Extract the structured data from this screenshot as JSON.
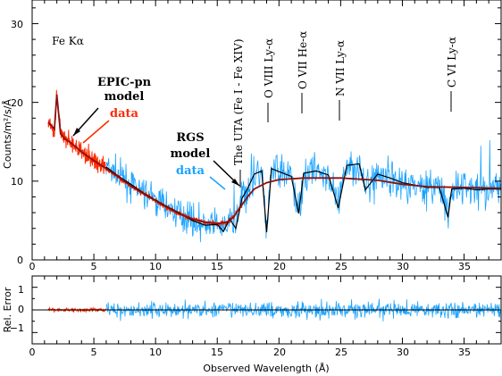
{
  "chart_data": [
    {
      "type": "line",
      "xlabel": "",
      "ylabel": "Counts/m²/s/Å",
      "xlim": [
        0,
        38
      ],
      "ylim": [
        0,
        33
      ],
      "xticks": [
        0,
        5,
        10,
        15,
        20,
        25,
        30,
        35
      ],
      "yticks": [
        0,
        10,
        20,
        30
      ],
      "grid": false,
      "colors": {
        "epic_data": "#ff2a00",
        "rgs_data": "#1aa3ff",
        "model": "#000000",
        "smooth_model": "#8b1010"
      },
      "series": [
        {
          "name": "EPIC-pn model",
          "x": [
            1.3,
            1.6,
            1.8,
            2.0,
            2.3,
            2.7,
            3.2,
            4.0,
            5.0,
            6.0,
            7.0,
            8.0,
            9.0,
            10.0,
            11.0,
            12.0,
            13.0,
            14.0,
            15.0,
            15.8,
            16.3,
            17.0,
            17.5,
            18.0,
            19.0,
            20.0,
            22.0,
            25.0,
            28.0,
            30.0,
            32.0,
            35.0,
            38.0
          ],
          "y": [
            17.5,
            17.0,
            16.6,
            21.0,
            16.0,
            15.3,
            14.8,
            13.7,
            12.6,
            11.6,
            10.5,
            9.4,
            8.4,
            7.5,
            6.6,
            5.8,
            5.2,
            4.8,
            4.6,
            4.8,
            5.4,
            7.0,
            8.1,
            9.0,
            9.8,
            10.2,
            10.4,
            10.4,
            10.1,
            9.6,
            9.3,
            9.2,
            9.1
          ]
        },
        {
          "name": "RGS model",
          "x": [
            6.0,
            7.0,
            8.0,
            9.0,
            10.0,
            11.0,
            12.0,
            13.0,
            14.0,
            15.0,
            15.5,
            16.0,
            16.5,
            17.0,
            17.5,
            18.0,
            18.6,
            19.0,
            19.4,
            20.0,
            21.0,
            21.6,
            22.0,
            23.0,
            24.0,
            24.8,
            25.5,
            26.5,
            27.0,
            28.0,
            29.0,
            30.0,
            31.0,
            32.0,
            33.0,
            33.7,
            34.0,
            35.0,
            36.0,
            37.0,
            38.0
          ],
          "y": [
            11.8,
            10.6,
            9.6,
            8.5,
            7.6,
            6.7,
            5.9,
            5.0,
            4.4,
            4.5,
            3.6,
            5.2,
            4.0,
            7.8,
            9.2,
            10.9,
            11.3,
            3.5,
            11.6,
            11.2,
            10.6,
            5.9,
            11.0,
            11.3,
            10.8,
            6.6,
            12.0,
            12.2,
            8.9,
            10.9,
            10.4,
            9.8,
            9.5,
            9.2,
            9.2,
            5.4,
            9.0,
            9.1,
            8.9,
            9.0,
            9.0
          ]
        }
      ],
      "annotations": [
        {
          "text": "Fe Kα",
          "x": 2.0
        },
        {
          "text": "The UTA (Fe I - Fe XIV)",
          "x": 16.9
        },
        {
          "text": "O VIII Ly-α",
          "x": 19.0
        },
        {
          "text": "O VII He-α",
          "x": 21.8
        },
        {
          "text": "N VII Ly-α",
          "x": 24.9
        },
        {
          "text": "C VI Ly-α",
          "x": 34.0
        }
      ],
      "legend_boxes": [
        {
          "model_line": "EPIC-pn",
          "model_word": "model",
          "data_word": "data",
          "data_color": "#ff2a00"
        },
        {
          "model_line": "RGS",
          "model_word": "model",
          "data_word": "data",
          "data_color": "#1aa3ff"
        }
      ]
    },
    {
      "type": "line",
      "xlabel": "Observed Wavelength (Å)",
      "ylabel": "Rel. Error",
      "xlim": [
        0,
        38
      ],
      "ylim": [
        -1.5,
        1.5
      ],
      "xticks": [
        0,
        5,
        10,
        15,
        20,
        25,
        30,
        35
      ],
      "yticks": [
        -1,
        0,
        1
      ],
      "grid": false,
      "series": [
        {
          "name": "EPIC-pn residuals",
          "x_range": [
            1.3,
            6.0
          ],
          "y_range": [
            -0.2,
            0.2
          ]
        },
        {
          "name": "RGS residuals",
          "x_range": [
            6.0,
            38.0
          ],
          "y_range": [
            -1.0,
            1.0
          ]
        }
      ]
    }
  ],
  "top_axis_labels": {
    "yticks": [
      "0",
      "10",
      "20",
      "30"
    ],
    "xticks": [
      "0",
      "5",
      "10",
      "15",
      "20",
      "25",
      "30",
      "35"
    ],
    "ylabel": "Counts/m²/s/Å"
  },
  "bottom_axis_labels": {
    "yticks": [
      "−1",
      "0",
      "1"
    ],
    "xticks": [
      "0",
      "5",
      "10",
      "15",
      "20",
      "25",
      "30",
      "35"
    ],
    "ylabel": "Rel. Error",
    "xlabel": "Observed Wavelength (Å)"
  },
  "annotations_text": {
    "fe_ka": "Fe Kα",
    "uta": "The UTA (Fe I - Fe XIV)",
    "o8": "O VIII Ly-α",
    "o7": "O VII He-α",
    "n7": "N VII Ly-α",
    "c6": "C VI Ly-α"
  },
  "legend_text": {
    "epic_model_line1": "EPIC-pn",
    "epic_model_line2": "model",
    "epic_data": "data",
    "rgs_model_line1": "RGS",
    "rgs_model_line2": "model",
    "rgs_data": "data"
  }
}
